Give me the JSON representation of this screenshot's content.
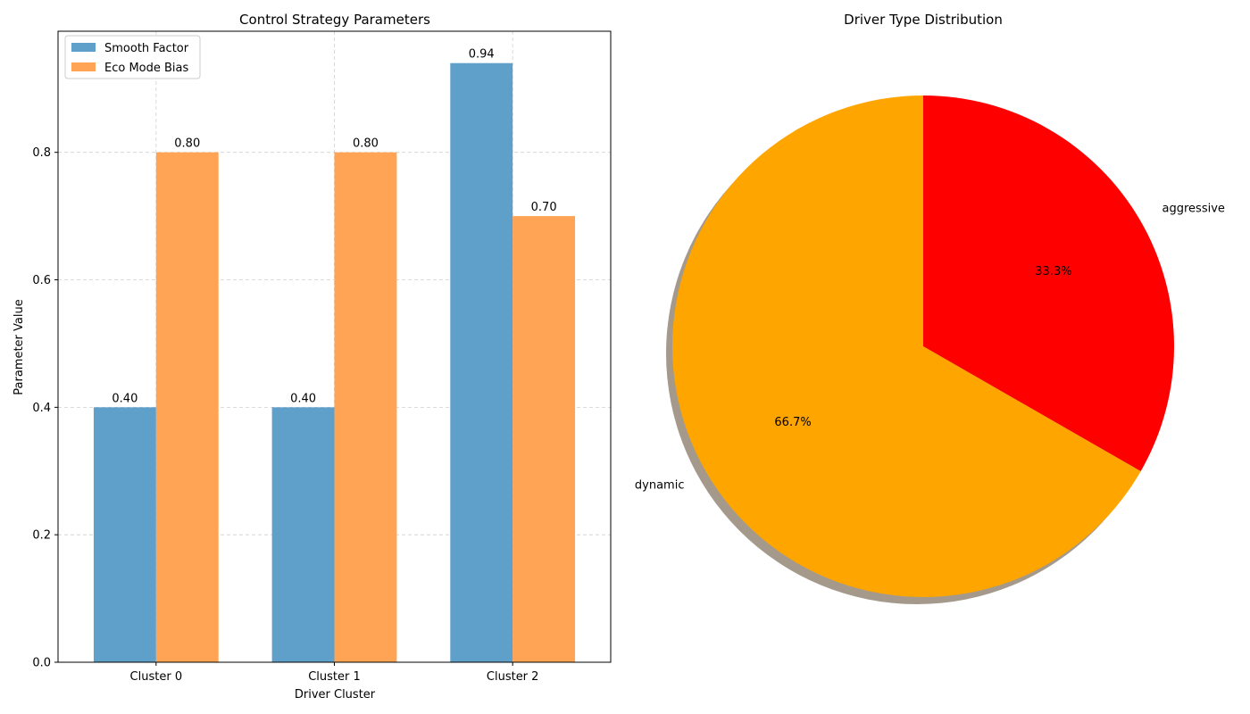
{
  "chart_data": [
    {
      "type": "bar",
      "title": "Control Strategy Parameters",
      "xlabel": "Driver Cluster",
      "ylabel": "Parameter Value",
      "categories": [
        "Cluster 0",
        "Cluster 1",
        "Cluster 2"
      ],
      "ylim": [
        0,
        0.99
      ],
      "yticks": [
        0.0,
        0.2,
        0.4,
        0.6,
        0.8
      ],
      "ytick_labels": [
        "0.0",
        "0.2",
        "0.4",
        "0.6",
        "0.8"
      ],
      "grid": true,
      "legend_position": "upper-left",
      "series": [
        {
          "name": "Smooth Factor",
          "values": [
            0.4,
            0.4,
            0.94
          ],
          "labels": [
            "0.40",
            "0.40",
            "0.94"
          ],
          "color": "#5fa0cb"
        },
        {
          "name": "Eco Mode Bias",
          "values": [
            0.8,
            0.8,
            0.7
          ],
          "labels": [
            "0.80",
            "0.80",
            "0.70"
          ],
          "color": "#ffa354"
        }
      ]
    },
    {
      "type": "pie",
      "title": "Driver Type Distribution",
      "shadow": true,
      "slices": [
        {
          "label": "aggressive",
          "value": 33.3,
          "pct_label": "33.3%",
          "color": "#ff0000"
        },
        {
          "label": "dynamic",
          "value": 66.7,
          "pct_label": "66.7%",
          "color": "#ffa500"
        }
      ]
    }
  ]
}
